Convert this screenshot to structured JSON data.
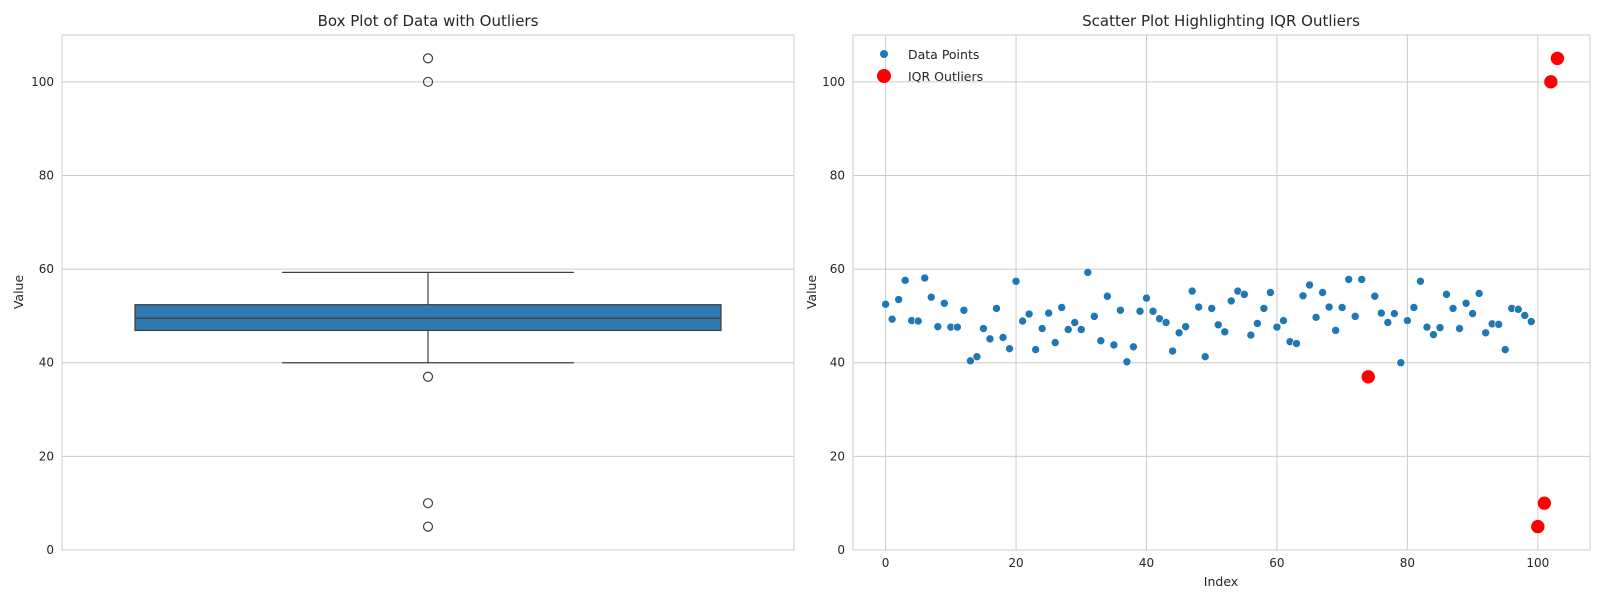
{
  "chart_data": [
    {
      "type": "box",
      "title": "Box Plot of Data with Outliers",
      "xlabel": "",
      "ylabel": "Value",
      "ylim": [
        0,
        110
      ],
      "yticks": [
        0,
        20,
        40,
        60,
        80,
        100
      ],
      "grid": true,
      "box": {
        "q1": 46.9,
        "median": 49.5,
        "q3": 52.4,
        "whisker_low": 40.0,
        "whisker_high": 59.3,
        "fill_color": "#2f78b0",
        "edge_color": "#3f3f3f"
      },
      "outliers": [
        105,
        100,
        37,
        10,
        5
      ]
    },
    {
      "type": "scatter",
      "title": "Scatter Plot Highlighting IQR Outliers",
      "xlabel": "Index",
      "ylabel": "Value",
      "xlim": [
        -5,
        108
      ],
      "ylim": [
        0,
        110
      ],
      "xticks": [
        0,
        20,
        40,
        60,
        80,
        100
      ],
      "yticks": [
        0,
        20,
        40,
        60,
        80,
        100
      ],
      "grid": true,
      "legend_position": "top-left",
      "series": [
        {
          "name": "Data Points",
          "color": "#1f77b4",
          "x": [
            0,
            1,
            2,
            3,
            4,
            5,
            6,
            7,
            8,
            9,
            10,
            11,
            12,
            13,
            14,
            15,
            16,
            17,
            18,
            19,
            20,
            21,
            22,
            23,
            24,
            25,
            26,
            27,
            28,
            29,
            30,
            31,
            32,
            33,
            34,
            35,
            36,
            37,
            38,
            39,
            40,
            41,
            42,
            43,
            44,
            45,
            46,
            47,
            48,
            49,
            50,
            51,
            52,
            53,
            54,
            55,
            56,
            57,
            58,
            59,
            60,
            61,
            62,
            63,
            64,
            65,
            66,
            67,
            68,
            69,
            70,
            71,
            72,
            73,
            75,
            76,
            77,
            78,
            79,
            80,
            81,
            82,
            83,
            84,
            85,
            86,
            87,
            88,
            89,
            90,
            91,
            92,
            93,
            94,
            95,
            96,
            97,
            98,
            99
          ],
          "y": [
            52.5,
            49.3,
            53.5,
            57.6,
            49.0,
            48.9,
            58.1,
            54.0,
            47.7,
            52.7,
            47.6,
            47.6,
            51.2,
            40.4,
            41.3,
            47.3,
            45.1,
            51.6,
            45.4,
            43.0,
            57.4,
            48.9,
            50.4,
            42.8,
            47.3,
            50.6,
            44.3,
            51.8,
            47.1,
            48.6,
            47.1,
            59.3,
            49.9,
            44.7,
            54.2,
            43.8,
            51.2,
            40.2,
            43.4,
            51.0,
            53.8,
            51.0,
            49.4,
            48.6,
            42.5,
            46.4,
            47.7,
            55.3,
            51.9,
            41.3,
            51.6,
            48.1,
            46.6,
            53.2,
            55.3,
            54.6,
            45.9,
            48.4,
            51.6,
            55.0,
            47.6,
            49.0,
            44.5,
            44.1,
            54.3,
            56.6,
            49.7,
            55.0,
            51.9,
            46.9,
            51.8,
            57.8,
            49.9,
            57.8,
            54.2,
            50.6,
            48.6,
            50.5,
            40.0,
            49.0,
            51.8,
            57.4,
            47.6,
            46.0,
            47.5,
            54.6,
            51.6,
            47.3,
            52.7,
            50.5,
            54.8,
            46.4,
            48.3,
            48.2,
            42.8,
            51.6,
            51.4,
            50.1,
            48.8
          ]
        },
        {
          "name": "IQR Outliers",
          "color": "#ff0000",
          "x": [
            74,
            100,
            101,
            102,
            103
          ],
          "y": [
            37,
            5,
            10,
            100,
            105
          ]
        }
      ]
    }
  ]
}
